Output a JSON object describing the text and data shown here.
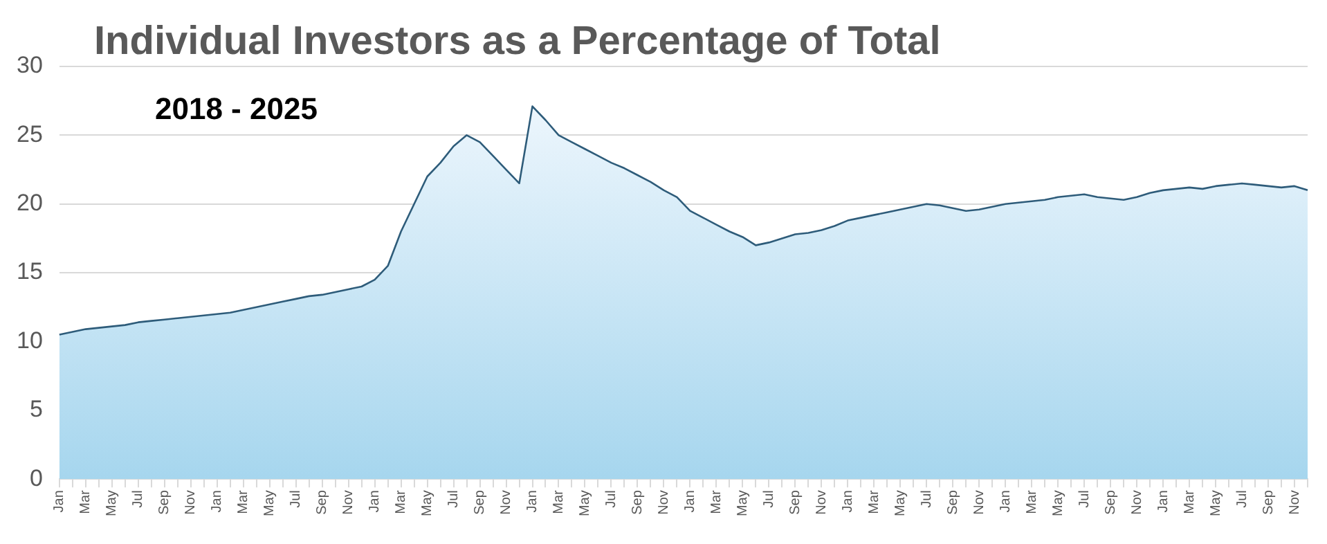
{
  "chart_data": {
    "type": "area",
    "title": "Individual Investors as a Percentage of Total",
    "subtitle": "2018 - 2025",
    "categories": [
      "Jan",
      null,
      "Mar",
      null,
      "May",
      null,
      "Jul",
      null,
      "Sep",
      null,
      "Nov",
      null,
      "Jan",
      null,
      "Mar",
      null,
      "May",
      null,
      "Jul",
      null,
      "Sep",
      null,
      "Nov",
      null,
      "Jan",
      null,
      "Mar",
      null,
      "May",
      null,
      "Jul",
      null,
      "Sep",
      null,
      "Nov",
      null,
      "Jan",
      null,
      "Mar",
      null,
      "May",
      null,
      "Jul",
      null,
      "Sep",
      null,
      "Nov",
      null,
      "Jan",
      null,
      "Mar",
      null,
      "May",
      null,
      "Jul",
      null,
      "Sep",
      null,
      "Nov",
      null,
      "Jan",
      null,
      "Mar",
      null,
      "May",
      null,
      "Jul",
      null,
      "Sep",
      null,
      "Nov",
      null,
      "Jan",
      null,
      "Mar",
      null,
      "May",
      null,
      "Jul",
      null,
      "Sep",
      null,
      "Nov",
      null,
      "Jan",
      null,
      "Mar",
      null,
      "May",
      null,
      "Jul",
      null,
      "Sep",
      null,
      "Nov",
      null
    ],
    "series": [
      {
        "color": "#2e5c7a",
        "values": [
          10.5,
          10.7,
          10.9,
          11.0,
          11.1,
          11.2,
          11.4,
          11.5,
          11.6,
          11.7,
          11.8,
          11.9,
          12.0,
          12.1,
          12.3,
          12.5,
          12.7,
          12.9,
          13.1,
          13.3,
          13.4,
          13.6,
          13.8,
          14.0,
          14.5,
          15.5,
          18.0,
          20.0,
          22.0,
          23.0,
          24.2,
          25.0,
          24.5,
          23.5,
          22.5,
          21.5,
          27.1,
          26.1,
          25.0,
          24.5,
          24.0,
          23.5,
          23.0,
          22.6,
          22.1,
          21.6,
          21.0,
          20.5,
          19.5,
          19.0,
          18.5,
          18.0,
          17.6,
          17.0,
          17.2,
          17.5,
          17.8,
          17.9,
          18.1,
          18.4,
          18.8,
          19.0,
          19.2,
          19.4,
          19.6,
          19.8,
          20.0,
          19.9,
          19.7,
          19.5,
          19.6,
          19.8,
          20.0,
          20.1,
          20.2,
          20.3,
          20.5,
          20.6,
          20.7,
          20.5,
          20.4,
          20.3,
          20.5,
          20.8,
          21.0,
          21.1,
          21.2,
          21.1,
          21.3,
          21.4,
          21.5,
          21.4,
          21.3,
          21.2,
          21.3,
          21.0
        ]
      }
    ],
    "ylim": [
      0,
      30
    ],
    "yticks": [
      0,
      5,
      10,
      15,
      20,
      25,
      30
    ],
    "grid": "y",
    "legend": false,
    "marker": "none"
  }
}
